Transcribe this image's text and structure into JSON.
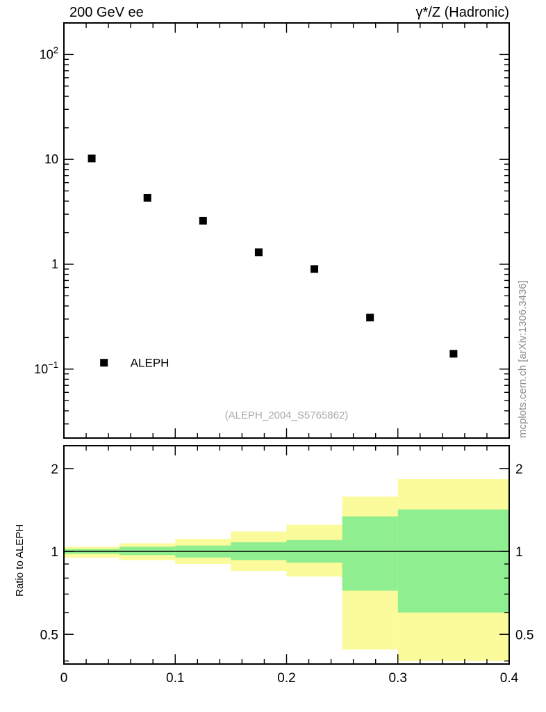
{
  "titles": {
    "left": "200 GeV ee",
    "right": "γ*/Z (Hadronic)",
    "watermark": "(ALEPH_2004_S5765862)",
    "side": "mcplots.cern.ch [arXiv:1306.3436]"
  },
  "chart_data": {
    "type": "scatter",
    "description": "log-scale distribution with ratio panel and uncertainty bands",
    "xlim": [
      0,
      0.4
    ],
    "xticks": [
      0,
      0.1,
      0.2,
      0.3,
      0.4
    ],
    "xtick_labels": [
      "0",
      "0.1",
      "0.2",
      "0.3",
      "0.4"
    ],
    "x_minor_step": 0.02,
    "top_panel": {
      "yscale": "log",
      "ylim": [
        0.022,
        200
      ],
      "yticks": [
        {
          "v": 100,
          "base": "10",
          "exp": "2"
        },
        {
          "v": 10,
          "base": "10",
          "exp": ""
        },
        {
          "v": 1,
          "base": "1",
          "exp": ""
        },
        {
          "v": 0.1,
          "base": "10",
          "exp": "−1"
        }
      ],
      "series": [
        {
          "name": "ALEPH",
          "marker": "filled-square",
          "color": "#000000",
          "x": [
            0.025,
            0.075,
            0.125,
            0.175,
            0.225,
            0.275,
            0.35
          ],
          "y": [
            10.2,
            4.3,
            2.6,
            1.3,
            0.9,
            0.31,
            0.14
          ]
        }
      ],
      "legend": {
        "label": "ALEPH",
        "marker_x": 0.036,
        "marker_y": 0.115
      }
    },
    "ratio_panel": {
      "ylabel": "Ratio to ALEPH",
      "yscale": "log",
      "ylim": [
        0.39,
        2.42
      ],
      "yticks": [
        {
          "v": 2,
          "label": "2"
        },
        {
          "v": 1,
          "label": "1"
        },
        {
          "v": 0.5,
          "label": "0.5"
        }
      ],
      "reference_line": 1,
      "band_colors": {
        "outer": "#fbfb9b",
        "inner": "#8fee8f"
      },
      "bands": [
        {
          "x0": 0,
          "x1": 0.05,
          "outer": [
            0.95,
            1.04
          ],
          "inner": [
            0.98,
            1.02
          ]
        },
        {
          "x0": 0.05,
          "x1": 0.1,
          "outer": [
            0.93,
            1.07
          ],
          "inner": [
            0.97,
            1.04
          ]
        },
        {
          "x0": 0.1,
          "x1": 0.15,
          "outer": [
            0.9,
            1.11
          ],
          "inner": [
            0.95,
            1.05
          ]
        },
        {
          "x0": 0.15,
          "x1": 0.2,
          "outer": [
            0.85,
            1.18
          ],
          "inner": [
            0.93,
            1.08
          ]
        },
        {
          "x0": 0.2,
          "x1": 0.25,
          "outer": [
            0.81,
            1.25
          ],
          "inner": [
            0.91,
            1.1
          ]
        },
        {
          "x0": 0.25,
          "x1": 0.3,
          "outer": [
            0.44,
            1.58
          ],
          "inner": [
            0.72,
            1.34
          ]
        },
        {
          "x0": 0.3,
          "x1": 0.4,
          "outer": [
            0.4,
            1.83
          ],
          "inner": [
            0.6,
            1.42
          ]
        }
      ]
    }
  }
}
